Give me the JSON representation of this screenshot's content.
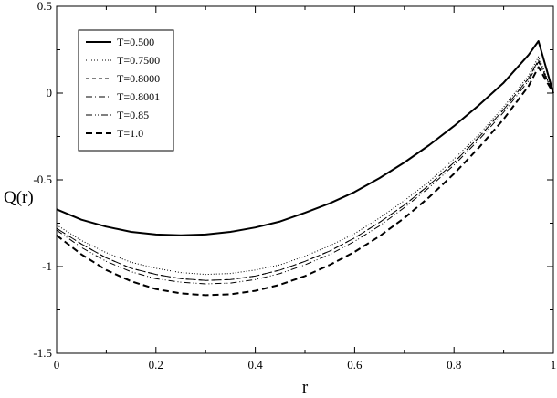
{
  "chart_data": {
    "type": "line",
    "title": "",
    "xlabel": "r",
    "ylabel": "Q(r)",
    "xlim": [
      0,
      1
    ],
    "ylim": [
      -1.5,
      0.5
    ],
    "grid": false,
    "legend_position": "top-left",
    "x_ticks": [
      0,
      0.2,
      0.4,
      0.6,
      0.8,
      1
    ],
    "x_tick_labels": [
      "0",
      "0.2",
      "0.4",
      "0.6",
      "0.8",
      "1"
    ],
    "y_ticks": [
      0.5,
      0,
      -0.5,
      -1,
      -1.5
    ],
    "y_tick_labels": [
      "0.5",
      "0",
      "-0.5",
      "-1",
      "-1.5"
    ],
    "series": [
      {
        "name": "T=0.500",
        "style": "solid",
        "color": "#000000",
        "x": [
          0,
          0.05,
          0.1,
          0.15,
          0.2,
          0.25,
          0.3,
          0.35,
          0.4,
          0.45,
          0.5,
          0.55,
          0.6,
          0.65,
          0.7,
          0.75,
          0.8,
          0.85,
          0.9,
          0.95,
          0.97,
          1.0
        ],
        "y": [
          -0.67,
          -0.73,
          -0.77,
          -0.8,
          -0.815,
          -0.82,
          -0.815,
          -0.8,
          -0.775,
          -0.74,
          -0.69,
          -0.635,
          -0.57,
          -0.49,
          -0.4,
          -0.3,
          -0.19,
          -0.07,
          0.06,
          0.22,
          0.3,
          0.0
        ]
      },
      {
        "name": "T=0.7500",
        "style": "dotted",
        "color": "#000000",
        "x": [
          0,
          0.05,
          0.1,
          0.15,
          0.2,
          0.25,
          0.3,
          0.35,
          0.4,
          0.45,
          0.5,
          0.55,
          0.6,
          0.65,
          0.7,
          0.75,
          0.8,
          0.85,
          0.9,
          0.95,
          0.97,
          1.0
        ],
        "y": [
          -0.76,
          -0.85,
          -0.92,
          -0.975,
          -1.01,
          -1.035,
          -1.045,
          -1.04,
          -1.02,
          -0.99,
          -0.94,
          -0.88,
          -0.81,
          -0.72,
          -0.62,
          -0.51,
          -0.38,
          -0.24,
          -0.08,
          0.1,
          0.21,
          0.0
        ]
      },
      {
        "name": "T=0.8000",
        "style": "dashed",
        "color": "#000000",
        "x": [
          0,
          0.05,
          0.1,
          0.15,
          0.2,
          0.25,
          0.3,
          0.35,
          0.4,
          0.45,
          0.5,
          0.55,
          0.6,
          0.65,
          0.7,
          0.75,
          0.8,
          0.85,
          0.9,
          0.95,
          0.97,
          1.0
        ],
        "y": [
          -0.78,
          -0.87,
          -0.95,
          -1.01,
          -1.045,
          -1.07,
          -1.08,
          -1.075,
          -1.055,
          -1.02,
          -0.97,
          -0.91,
          -0.835,
          -0.745,
          -0.645,
          -0.53,
          -0.4,
          -0.255,
          -0.095,
          0.085,
          0.19,
          0.0
        ]
      },
      {
        "name": "T=0.8001",
        "style": "dashdot",
        "color": "#000000",
        "x": [
          0,
          0.05,
          0.1,
          0.15,
          0.2,
          0.25,
          0.3,
          0.35,
          0.4,
          0.45,
          0.5,
          0.55,
          0.6,
          0.65,
          0.7,
          0.75,
          0.8,
          0.85,
          0.9,
          0.95,
          0.97,
          1.0
        ],
        "y": [
          -0.78,
          -0.87,
          -0.95,
          -1.01,
          -1.045,
          -1.07,
          -1.08,
          -1.075,
          -1.055,
          -1.02,
          -0.97,
          -0.91,
          -0.835,
          -0.745,
          -0.645,
          -0.53,
          -0.4,
          -0.255,
          -0.095,
          0.085,
          0.19,
          0.0
        ]
      },
      {
        "name": "T=0.85",
        "style": "dashdotdot",
        "color": "#000000",
        "x": [
          0,
          0.05,
          0.1,
          0.15,
          0.2,
          0.25,
          0.3,
          0.35,
          0.4,
          0.45,
          0.5,
          0.55,
          0.6,
          0.65,
          0.7,
          0.75,
          0.8,
          0.85,
          0.9,
          0.95,
          0.97,
          1.0
        ],
        "y": [
          -0.79,
          -0.89,
          -0.97,
          -1.03,
          -1.07,
          -1.09,
          -1.1,
          -1.095,
          -1.075,
          -1.04,
          -0.99,
          -0.93,
          -0.855,
          -0.765,
          -0.66,
          -0.545,
          -0.415,
          -0.27,
          -0.11,
          0.07,
          0.18,
          0.0
        ]
      },
      {
        "name": "T=1.0",
        "style": "longdash",
        "color": "#000000",
        "x": [
          0,
          0.05,
          0.1,
          0.15,
          0.2,
          0.25,
          0.3,
          0.35,
          0.4,
          0.45,
          0.5,
          0.55,
          0.6,
          0.65,
          0.7,
          0.75,
          0.8,
          0.85,
          0.9,
          0.95,
          0.97,
          1.0
        ],
        "y": [
          -0.82,
          -0.93,
          -1.02,
          -1.085,
          -1.13,
          -1.155,
          -1.165,
          -1.16,
          -1.14,
          -1.105,
          -1.055,
          -0.99,
          -0.915,
          -0.825,
          -0.72,
          -0.6,
          -0.465,
          -0.315,
          -0.15,
          0.04,
          0.15,
          0.0
        ]
      }
    ]
  }
}
